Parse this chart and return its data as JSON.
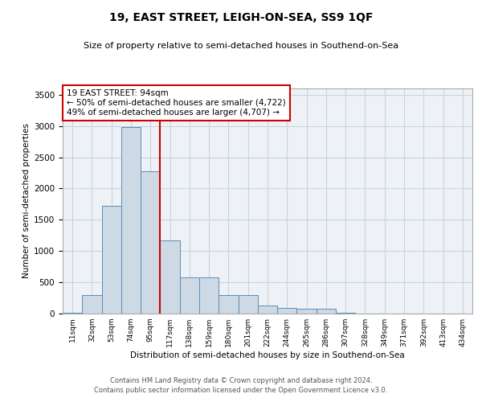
{
  "title": "19, EAST STREET, LEIGH-ON-SEA, SS9 1QF",
  "subtitle": "Size of property relative to semi-detached houses in Southend-on-Sea",
  "xlabel": "Distribution of semi-detached houses by size in Southend-on-Sea",
  "ylabel": "Number of semi-detached properties",
  "bar_color": "#cdd9e5",
  "bar_edge_color": "#5b8db8",
  "grid_color": "#c8d4de",
  "background_color": "#eef2f6",
  "marker_color": "#cc0000",
  "annotation_text": "19 EAST STREET: 94sqm\n← 50% of semi-detached houses are smaller (4,722)\n49% of semi-detached houses are larger (4,707) →",
  "annotation_box_color": "#ffffff",
  "annotation_box_edge": "#cc0000",
  "categories": [
    "11sqm",
    "32sqm",
    "53sqm",
    "74sqm",
    "95sqm",
    "117sqm",
    "138sqm",
    "159sqm",
    "180sqm",
    "201sqm",
    "222sqm",
    "244sqm",
    "265sqm",
    "286sqm",
    "307sqm",
    "328sqm",
    "349sqm",
    "371sqm",
    "392sqm",
    "413sqm",
    "434sqm"
  ],
  "values": [
    8,
    295,
    1720,
    2980,
    2280,
    1170,
    585,
    575,
    295,
    295,
    125,
    95,
    75,
    75,
    18,
    3,
    3,
    3,
    3,
    3,
    3
  ],
  "ylim": [
    0,
    3600
  ],
  "yticks": [
    0,
    500,
    1000,
    1500,
    2000,
    2500,
    3000,
    3500
  ],
  "footer1": "Contains HM Land Registry data © Crown copyright and database right 2024.",
  "footer2": "Contains public sector information licensed under the Open Government Licence v3.0."
}
